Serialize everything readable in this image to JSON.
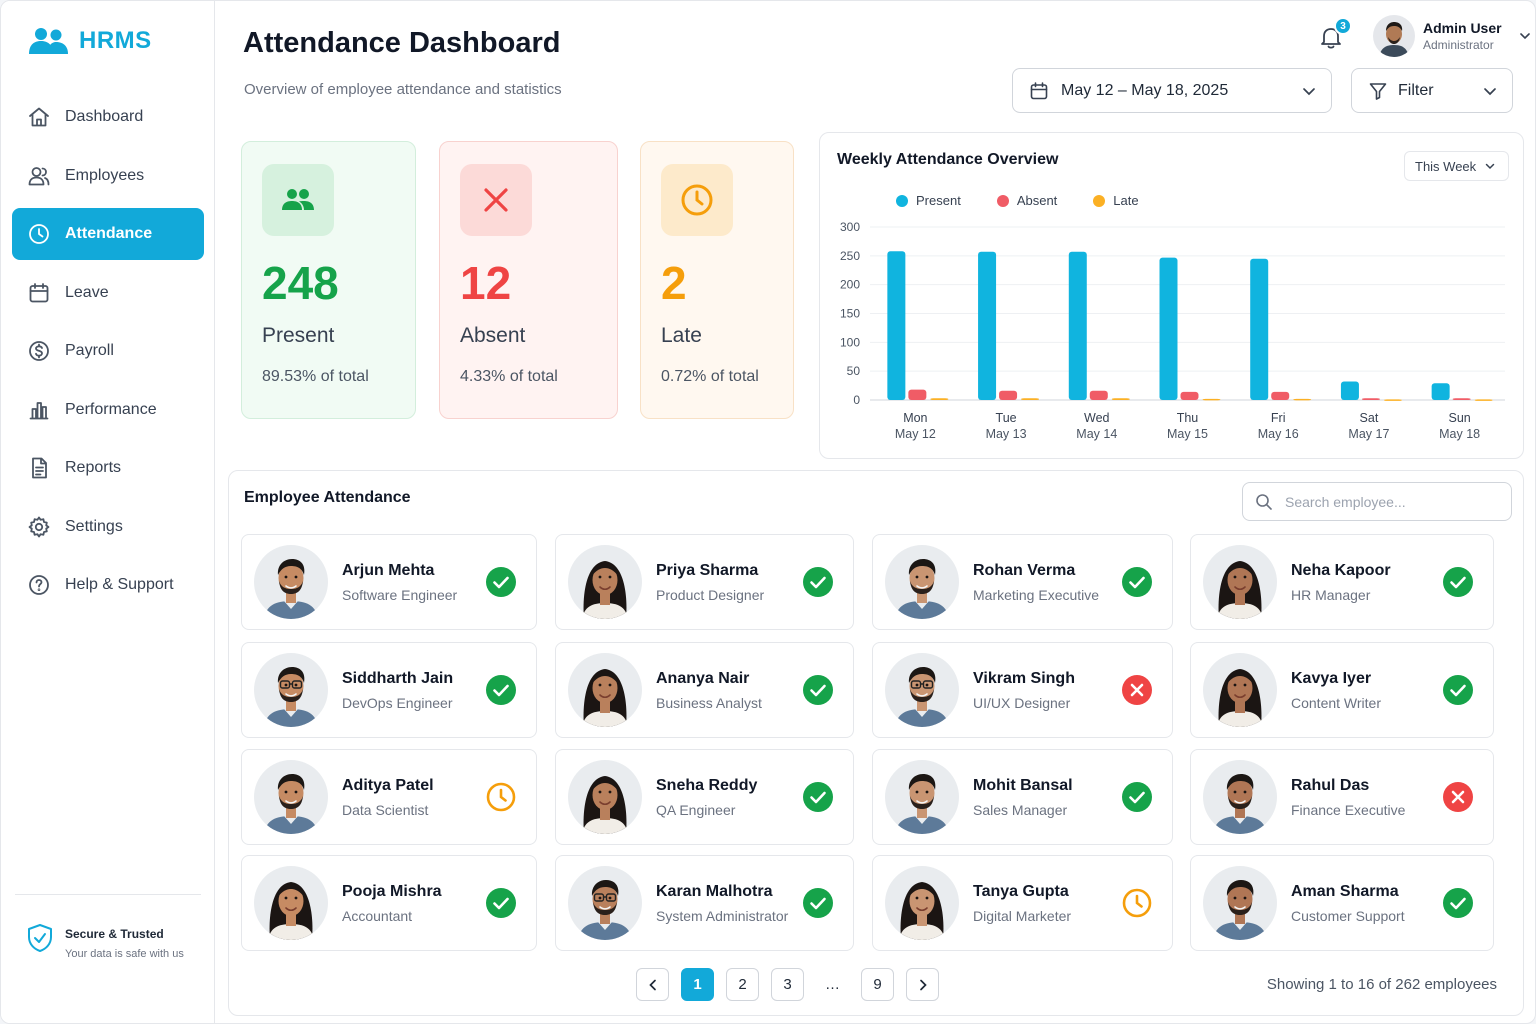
{
  "app": {
    "name": "HRMS"
  },
  "sidebar": {
    "items": [
      {
        "label": "Dashboard",
        "icon": "home-icon"
      },
      {
        "label": "Employees",
        "icon": "users-icon"
      },
      {
        "label": "Attendance",
        "icon": "clock-icon",
        "active": true
      },
      {
        "label": "Leave",
        "icon": "calendar-icon"
      },
      {
        "label": "Payroll",
        "icon": "dollar-icon"
      },
      {
        "label": "Performance",
        "icon": "bar-chart-icon"
      },
      {
        "label": "Reports",
        "icon": "document-icon"
      },
      {
        "label": "Settings",
        "icon": "gear-icon"
      },
      {
        "label": "Help & Support",
        "icon": "help-icon"
      }
    ],
    "secure_title": "Secure & Trusted",
    "secure_sub": "Your data is safe with us"
  },
  "header": {
    "title": "Attendance Dashboard",
    "subtitle": "Overview of employee attendance and statistics",
    "notifications": "3",
    "user_name": "Admin User",
    "user_role": "Administrator",
    "date_range": "May 12 – May 18, 2025",
    "filter_label": "Filter"
  },
  "colors": {
    "accent": "#12a9d9",
    "present": "#16a34a",
    "absent": "#ef4444",
    "late": "#f59e0b",
    "bar_present": "#10b4df",
    "bar_absent": "#f05c66",
    "bar_late": "#fbb024"
  },
  "stats": {
    "present": {
      "value": "248",
      "label": "Present",
      "pct": "89.53% of total"
    },
    "absent": {
      "value": "12",
      "label": "Absent",
      "pct": "4.33% of total"
    },
    "late": {
      "value": "2",
      "label": "Late",
      "pct": "0.72% of total"
    }
  },
  "chart_data": {
    "type": "bar",
    "title": "Weekly Attendance Overview",
    "range_select": "This Week",
    "categories": [
      "Mon",
      "Tue",
      "Wed",
      "Thu",
      "Fri",
      "Sat",
      "Sun"
    ],
    "dates": [
      "May 12",
      "May 13",
      "May 14",
      "May 15",
      "May 16",
      "May 17",
      "May 18"
    ],
    "series": [
      {
        "name": "Present",
        "values": [
          258,
          257,
          257,
          247,
          245,
          32,
          29
        ]
      },
      {
        "name": "Absent",
        "values": [
          18,
          16,
          16,
          14,
          14,
          3,
          3
        ]
      },
      {
        "name": "Late",
        "values": [
          3,
          3,
          3,
          2,
          2,
          1,
          1
        ]
      }
    ],
    "yticks": [
      0,
      50,
      100,
      150,
      200,
      250,
      300
    ],
    "ylim": [
      0,
      300
    ],
    "grid": true,
    "legend": "top"
  },
  "employees_section": {
    "title": "Employee Attendance",
    "search_placeholder": "Search employee...",
    "list": [
      {
        "name": "Arjun Mehta",
        "role": "Software Engineer",
        "status": "present",
        "gender": "m"
      },
      {
        "name": "Priya Sharma",
        "role": "Product Designer",
        "status": "present",
        "gender": "f"
      },
      {
        "name": "Rohan Verma",
        "role": "Marketing Executive",
        "status": "present",
        "gender": "m"
      },
      {
        "name": "Neha Kapoor",
        "role": "HR Manager",
        "status": "present",
        "gender": "f"
      },
      {
        "name": "Siddharth Jain",
        "role": "DevOps Engineer",
        "status": "present",
        "gender": "m",
        "glasses": true
      },
      {
        "name": "Ananya Nair",
        "role": "Business Analyst",
        "status": "present",
        "gender": "f"
      },
      {
        "name": "Vikram Singh",
        "role": "UI/UX Designer",
        "status": "absent",
        "gender": "m",
        "glasses": true
      },
      {
        "name": "Kavya Iyer",
        "role": "Content Writer",
        "status": "present",
        "gender": "f"
      },
      {
        "name": "Aditya Patel",
        "role": "Data Scientist",
        "status": "late",
        "gender": "m"
      },
      {
        "name": "Sneha Reddy",
        "role": "QA Engineer",
        "status": "present",
        "gender": "f"
      },
      {
        "name": "Mohit Bansal",
        "role": "Sales Manager",
        "status": "present",
        "gender": "m"
      },
      {
        "name": "Rahul Das",
        "role": "Finance Executive",
        "status": "absent",
        "gender": "m"
      },
      {
        "name": "Pooja Mishra",
        "role": "Accountant",
        "status": "present",
        "gender": "f"
      },
      {
        "name": "Karan Malhotra",
        "role": "System Administrator",
        "status": "present",
        "gender": "m",
        "glasses": true
      },
      {
        "name": "Tanya Gupta",
        "role": "Digital Marketer",
        "status": "late",
        "gender": "f"
      },
      {
        "name": "Aman Sharma",
        "role": "Customer Support",
        "status": "present",
        "gender": "m"
      }
    ]
  },
  "pagination": {
    "pages": [
      "1",
      "2",
      "3",
      "…",
      "9"
    ],
    "current": "1",
    "showing": "Showing 1 to 16 of 262 employees"
  }
}
